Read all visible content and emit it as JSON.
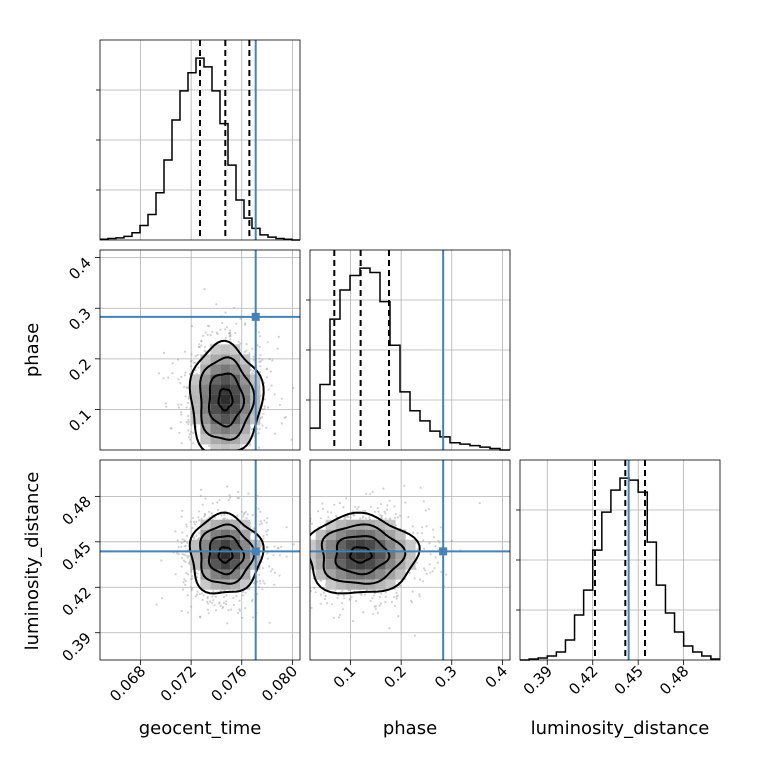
{
  "chart_data": {
    "type": "corner",
    "parameters": [
      "geocent_time",
      "phase",
      "luminosity_distance"
    ],
    "axis_labels": {
      "x": [
        "geocent_time",
        "phase",
        "luminosity_distance"
      ],
      "y_phase": "phase",
      "y_luminosity_distance": "luminosity_distance"
    },
    "ranges": {
      "geocent_time": [
        0.0648,
        0.0806
      ],
      "phase": [
        0.02,
        0.415
      ],
      "luminosity_distance": [
        0.372,
        0.504
      ]
    },
    "ticks": {
      "geocent_time": {
        "values": [
          0.068,
          0.072,
          0.076,
          0.08
        ],
        "labels": [
          "0.068",
          "0.072",
          "0.076",
          "0.080"
        ]
      },
      "phase": {
        "values": [
          0.1,
          0.2,
          0.3,
          0.4
        ],
        "labels": [
          "0.1",
          "0.2",
          "0.3",
          "0.4"
        ]
      },
      "luminosity_distance": {
        "values": [
          0.39,
          0.42,
          0.45,
          0.48
        ],
        "labels": [
          "0.39",
          "0.42",
          "0.45",
          "0.48"
        ]
      }
    },
    "truths": {
      "geocent_time": 0.0771,
      "phase": 0.283,
      "luminosity_distance": 0.4437
    },
    "truth_color": "#4682b4",
    "quantiles": {
      "geocent_time": [
        0.0727,
        0.0747,
        0.0766
      ],
      "phase": [
        0.068,
        0.12,
        0.176
      ],
      "luminosity_distance": [
        0.4215,
        0.4415,
        0.4545
      ]
    },
    "histograms": {
      "geocent_time": {
        "edges_range": [
          0.0648,
          0.0806
        ],
        "counts": [
          1,
          2,
          3,
          5,
          10,
          20,
          35,
          65,
          110,
          165,
          205,
          230,
          250,
          238,
          205,
          160,
          103,
          55,
          30,
          16,
          7,
          4,
          2,
          1,
          0
        ]
      },
      "phase": {
        "edges_range": [
          0.02,
          0.415
        ],
        "counts": [
          15,
          45,
          90,
          110,
          120,
          125,
          122,
          102,
          72,
          40,
          27,
          20,
          13,
          9,
          5,
          4,
          3,
          2,
          1,
          0
        ]
      },
      "luminosity_distance": {
        "edges_range": [
          0.372,
          0.504
        ],
        "counts": [
          0,
          1,
          2,
          4,
          8,
          20,
          45,
          70,
          110,
          148,
          170,
          182,
          180,
          168,
          118,
          75,
          47,
          28,
          14,
          8,
          4,
          1
        ]
      }
    },
    "contour_levels": [
      "0.5",
      "1.0",
      "1.5",
      "2.0"
    ],
    "grid": true,
    "xlabel_rotation": 45
  }
}
